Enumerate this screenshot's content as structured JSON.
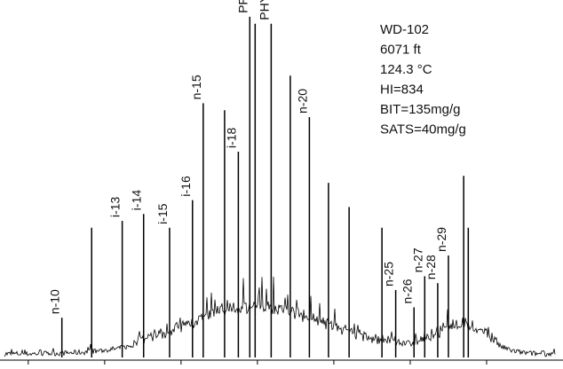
{
  "chart_data": {
    "type": "chromatogram",
    "annotation": [
      "WD-102",
      "6071 ft",
      "124.3 °C",
      "HI=834",
      "BIT=135mg/g",
      "SATS=40mg/g"
    ],
    "xlim": [
      -0.37,
      7
    ],
    "xticks": [
      0,
      1,
      2,
      3,
      4,
      5,
      6
    ],
    "ylim": [
      0,
      100
    ],
    "color": "#000000",
    "peaks": [
      {
        "label": "n-10",
        "x": 0.44,
        "height": 12
      },
      {
        "label": null,
        "x": 0.83,
        "height": 38
      },
      {
        "label": "i-13",
        "x": 1.23,
        "height": 40
      },
      {
        "label": "i-14",
        "x": 1.51,
        "height": 42
      },
      {
        "label": "i-15",
        "x": 1.85,
        "height": 38
      },
      {
        "label": "i-16",
        "x": 2.15,
        "height": 46
      },
      {
        "label": "n-15",
        "x": 2.29,
        "height": 74
      },
      {
        "label": null,
        "x": 2.57,
        "height": 72
      },
      {
        "label": "i-18",
        "x": 2.75,
        "height": 60
      },
      {
        "label": "PR",
        "x": 2.9,
        "height": 99
      },
      {
        "label": null,
        "x": 2.97,
        "height": 97
      },
      {
        "label": "PHY",
        "x": 3.18,
        "height": 97
      },
      {
        "label": null,
        "x": 3.43,
        "height": 82
      },
      {
        "label": "n-20",
        "x": 3.68,
        "height": 70
      },
      {
        "label": null,
        "x": 3.93,
        "height": 51
      },
      {
        "label": null,
        "x": 4.2,
        "height": 44
      },
      {
        "label": null,
        "x": 4.63,
        "height": 38
      },
      {
        "label": "n-25",
        "x": 4.81,
        "height": 20
      },
      {
        "label": "n-26",
        "x": 5.05,
        "height": 15
      },
      {
        "label": "n-27",
        "x": 5.19,
        "height": 24
      },
      {
        "label": "n-28",
        "x": 5.36,
        "height": 22
      },
      {
        "label": "n-29",
        "x": 5.5,
        "height": 30
      },
      {
        "label": null,
        "x": 5.7,
        "height": 53
      },
      {
        "label": null,
        "x": 5.76,
        "height": 38
      }
    ]
  }
}
